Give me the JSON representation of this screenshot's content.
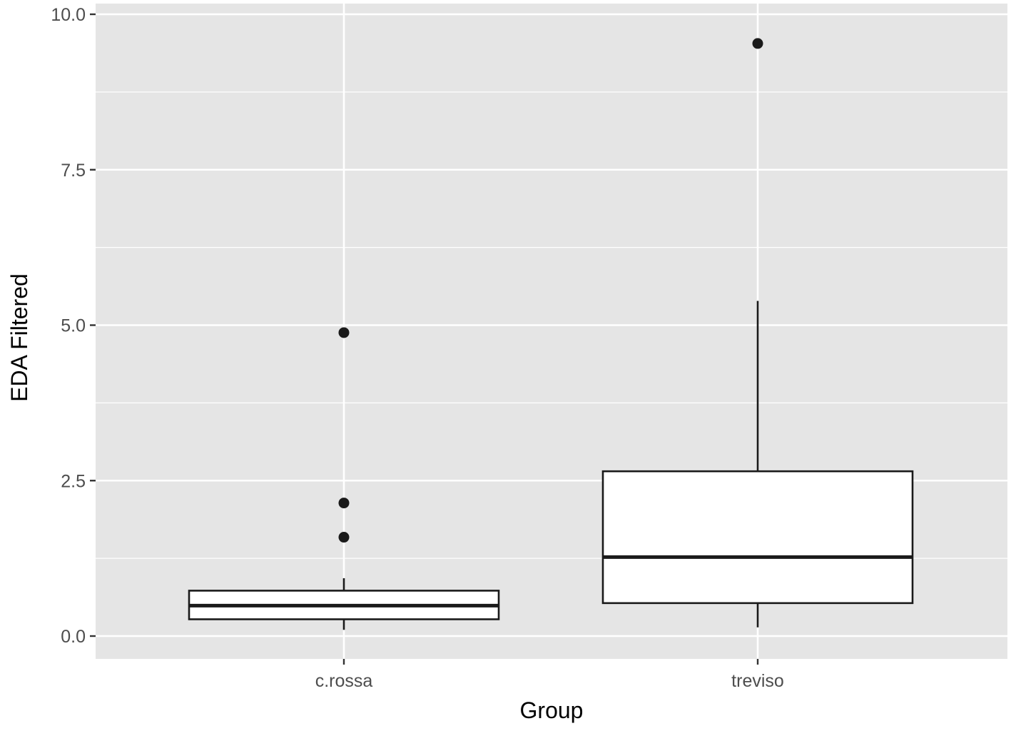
{
  "chart_data": {
    "type": "boxplot",
    "title": "",
    "xlabel": "Group",
    "ylabel": "EDA Filtered",
    "categories": [
      "c.rossa",
      "treviso"
    ],
    "ylim": [
      -0.35,
      10.0
    ],
    "yticks": [
      0.0,
      2.5,
      5.0,
      7.5,
      10.0
    ],
    "ytick_labels": [
      "0.0",
      "2.5",
      "5.0",
      "7.5",
      "10.0"
    ],
    "grid": true,
    "legend": "none",
    "boxes": [
      {
        "category": "c.rossa",
        "min": 0.1,
        "q1": 0.27,
        "median": 0.49,
        "q3": 0.73,
        "max": 0.93,
        "outliers": [
          4.88,
          2.14,
          1.59
        ]
      },
      {
        "category": "treviso",
        "min": 0.14,
        "q1": 0.53,
        "median": 1.27,
        "q3": 2.65,
        "max": 5.39,
        "outliers": [
          9.53
        ]
      }
    ],
    "colors": {
      "panel": "#e5e5e5",
      "grid": "#ffffff",
      "box_fill": "#ffffff",
      "box_line": "#1a1a1a",
      "outlier": "#1a1a1a",
      "tick_text": "#4d4d4d"
    }
  }
}
